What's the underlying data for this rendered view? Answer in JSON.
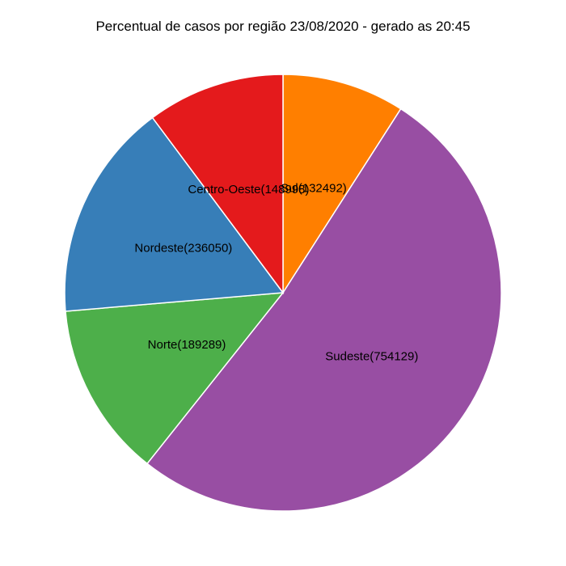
{
  "chart_data": {
    "type": "pie",
    "title": "Percentual de casos por região 23/08/2020 - gerado as 20:45",
    "start": "12 o'clock",
    "direction": "clockwise",
    "slices": [
      {
        "name": "Sul",
        "value": 132492,
        "label": "Sul(132492)",
        "color": "#ff7f00"
      },
      {
        "name": "Sudeste",
        "value": 754129,
        "label": "Sudeste(754129)",
        "color": "#984ea3"
      },
      {
        "name": "Norte",
        "value": 189289,
        "label": "Norte(189289)",
        "color": "#4daf4a"
      },
      {
        "name": "Nordeste",
        "value": 236050,
        "label": "Nordeste(236050)",
        "color": "#377eb8"
      },
      {
        "name": "Centro-Oeste",
        "value": 148998,
        "label": "Centro-Oeste(148998)",
        "color": "#e41a1c"
      }
    ]
  }
}
